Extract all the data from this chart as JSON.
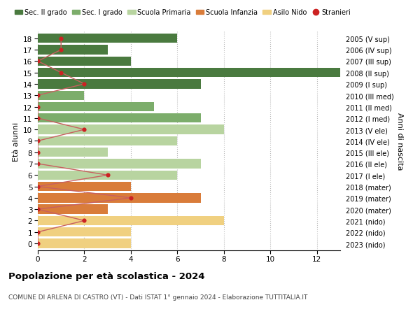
{
  "ages": [
    0,
    1,
    2,
    3,
    4,
    5,
    6,
    7,
    8,
    9,
    10,
    11,
    12,
    13,
    14,
    15,
    16,
    17,
    18
  ],
  "years": [
    "2023 (nido)",
    "2022 (nido)",
    "2021 (nido)",
    "2020 (mater)",
    "2019 (mater)",
    "2018 (mater)",
    "2017 (I ele)",
    "2016 (II ele)",
    "2015 (III ele)",
    "2014 (IV ele)",
    "2013 (V ele)",
    "2012 (I med)",
    "2011 (II med)",
    "2010 (III med)",
    "2009 (I sup)",
    "2008 (II sup)",
    "2007 (III sup)",
    "2006 (IV sup)",
    "2005 (V sup)"
  ],
  "bar_values": [
    4,
    4,
    8,
    3,
    7,
    4,
    6,
    7,
    3,
    6,
    8,
    7,
    5,
    2,
    7,
    13,
    4,
    3,
    6
  ],
  "bar_colors": [
    "#f0d080",
    "#f0d080",
    "#f0d080",
    "#d97c3a",
    "#d97c3a",
    "#d97c3a",
    "#b8d4a0",
    "#b8d4a0",
    "#b8d4a0",
    "#b8d4a0",
    "#b8d4a0",
    "#7cad6b",
    "#7cad6b",
    "#7cad6b",
    "#4a7a3f",
    "#4a7a3f",
    "#4a7a3f",
    "#4a7a3f",
    "#4a7a3f"
  ],
  "stranieri_x": [
    0,
    0,
    2,
    0,
    4,
    0,
    3,
    0,
    0,
    0,
    2,
    0,
    0,
    0,
    2,
    1,
    0,
    1,
    1
  ],
  "title": "Popolazione per età scolastica - 2024",
  "subtitle": "COMUNE DI ARLENA DI CASTRO (VT) - Dati ISTAT 1° gennaio 2024 - Elaborazione TUTTITALIA.IT",
  "ylabel_left": "Età alunni",
  "ylabel_right": "Anni di nascita",
  "xlim": [
    0,
    13
  ],
  "xticks": [
    0,
    2,
    4,
    6,
    8,
    10,
    12
  ],
  "legend_labels": [
    "Sec. II grado",
    "Sec. I grado",
    "Scuola Primaria",
    "Scuola Infanzia",
    "Asilo Nido",
    "Stranieri"
  ],
  "legend_colors": [
    "#4a7a3f",
    "#7cad6b",
    "#b8d4a0",
    "#d97c3a",
    "#f0d080",
    "#cc2222"
  ],
  "bar_height": 0.82,
  "bg_color": "#ffffff",
  "grid_color": "#bbbbbb",
  "stranieri_color": "#cc2222",
  "stranieri_line_color": "#c86060"
}
